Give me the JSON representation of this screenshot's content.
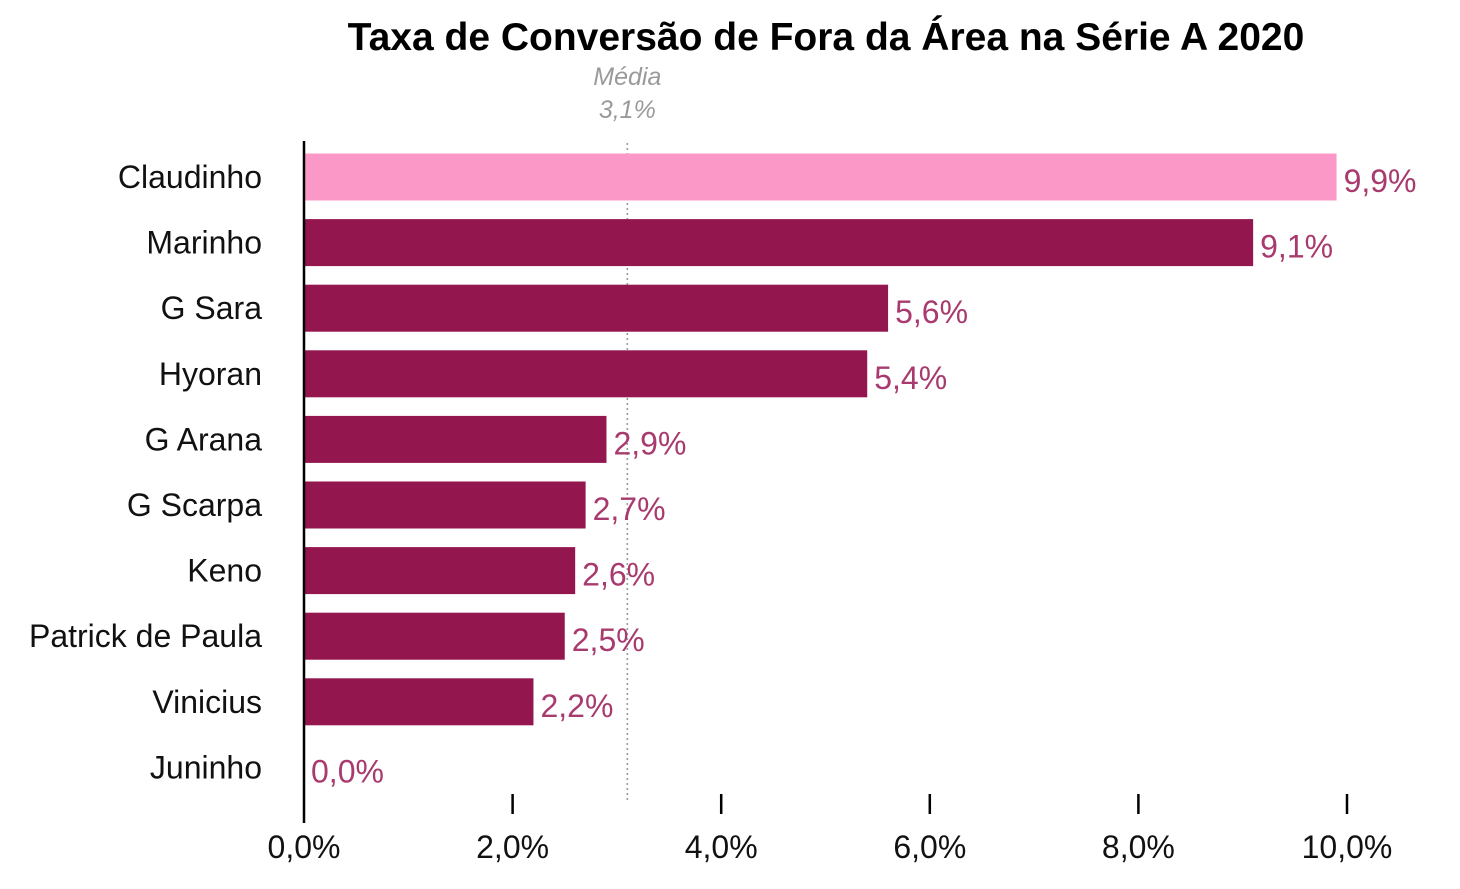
{
  "chart_data": {
    "type": "bar",
    "orientation": "horizontal",
    "title": "Taxa de Conversão de Fora da Área na Série A 2020",
    "categories": [
      "Claudinho",
      "Marinho",
      "G Sara",
      "Hyoran",
      "G Arana",
      "G Scarpa",
      "Keno",
      "Patrick de Paula",
      "Vinicius",
      "Juninho"
    ],
    "values": [
      9.9,
      9.1,
      5.6,
      5.4,
      2.9,
      2.7,
      2.6,
      2.5,
      2.2,
      0.0
    ],
    "value_labels": [
      "9,9%",
      "9,1%",
      "5,6%",
      "5,4%",
      "2,9%",
      "2,7%",
      "2,6%",
      "2,5%",
      "2,2%",
      "0,0%"
    ],
    "xlim": [
      0,
      10
    ],
    "xticks": [
      0,
      2,
      4,
      6,
      8,
      10
    ],
    "xtick_labels": [
      "0,0%",
      "2,0%",
      "4,0%",
      "6,0%",
      "8,0%",
      "10,0%"
    ],
    "reference_line": {
      "value": 3.1,
      "label": "Média",
      "value_label": "3,1%",
      "color": "#9a9a9a",
      "style": "dotted"
    },
    "highlight_category": "Claudinho",
    "grid": false,
    "legend": "none"
  },
  "colors": {
    "bar": "#93164f",
    "bar_highlight": "#fc98c8",
    "value_label": "#a83a6e",
    "value_label_highlight": "#a83a6e",
    "axis": "#000000",
    "title": "#000000"
  }
}
